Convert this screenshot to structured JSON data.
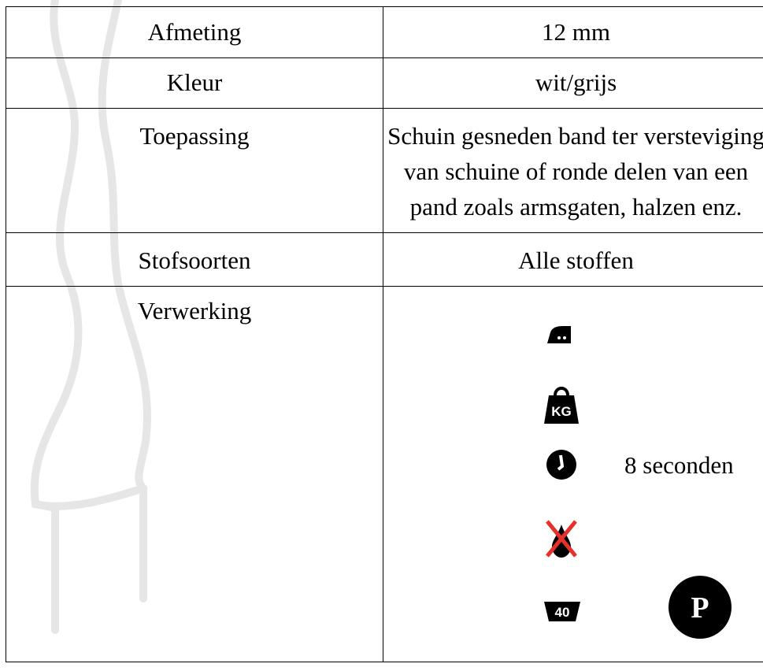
{
  "table": {
    "rows": [
      [
        "Afmeting",
        "12 mm"
      ],
      [
        "Kleur",
        "wit/grijs"
      ],
      [
        "Toepassing",
        "Schuin gesneden band ter versteviging van schuine of ronde delen van een pand zoals armsgaten, halzen enz."
      ],
      [
        "Stofsoorten",
        "Alle stoffen"
      ],
      [
        "Verwerking",
        ""
      ]
    ]
  },
  "processing": {
    "weight_icon": "KG",
    "time": "8 seconden",
    "wash_icon": "40",
    "press_icon": "P"
  }
}
